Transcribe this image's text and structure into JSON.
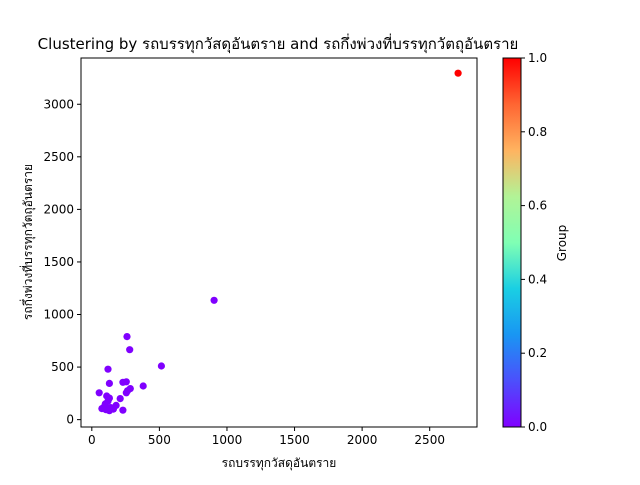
{
  "chart_data": {
    "type": "scatter",
    "title": "Clustering by รถบรรทุกวัสดุอันตราย and รถกึ่งพ่วงที่บรรทุกวัตถุอันตราย",
    "xlabel": "รถบรรทุกวัสดุอันตราย",
    "ylabel": "รถกึ่งพ่วงที่บรรทุกวัตถุอันตราย",
    "colorbar_label": "Group",
    "xlim": [
      -80,
      2850
    ],
    "ylim": [
      -70,
      3440
    ],
    "x_ticks": [
      0,
      500,
      1000,
      1500,
      2000,
      2500
    ],
    "y_ticks": [
      0,
      500,
      1000,
      1500,
      2000,
      2500,
      3000
    ],
    "colorbar_ticks": [
      0.0,
      0.2,
      0.4,
      0.6,
      0.8,
      1.0
    ],
    "colorbar_tick_labels": [
      "0.0",
      "0.2",
      "0.4",
      "0.6",
      "0.8",
      "1.0"
    ],
    "colormap": "rainbow",
    "grid": false,
    "points": [
      {
        "x": 2710,
        "y": 3295,
        "group": 1
      },
      {
        "x": 905,
        "y": 1135,
        "group": 0
      },
      {
        "x": 260,
        "y": 790,
        "group": 0
      },
      {
        "x": 280,
        "y": 665,
        "group": 0
      },
      {
        "x": 515,
        "y": 510,
        "group": 0
      },
      {
        "x": 120,
        "y": 480,
        "group": 0
      },
      {
        "x": 380,
        "y": 320,
        "group": 0
      },
      {
        "x": 230,
        "y": 355,
        "group": 0
      },
      {
        "x": 255,
        "y": 360,
        "group": 0
      },
      {
        "x": 130,
        "y": 345,
        "group": 0
      },
      {
        "x": 285,
        "y": 295,
        "group": 0
      },
      {
        "x": 265,
        "y": 275,
        "group": 0
      },
      {
        "x": 255,
        "y": 255,
        "group": 0
      },
      {
        "x": 55,
        "y": 255,
        "group": 0
      },
      {
        "x": 110,
        "y": 225,
        "group": 0
      },
      {
        "x": 130,
        "y": 205,
        "group": 0
      },
      {
        "x": 210,
        "y": 200,
        "group": 0
      },
      {
        "x": 120,
        "y": 175,
        "group": 0
      },
      {
        "x": 100,
        "y": 150,
        "group": 0
      },
      {
        "x": 180,
        "y": 135,
        "group": 0
      },
      {
        "x": 140,
        "y": 115,
        "group": 0
      },
      {
        "x": 90,
        "y": 120,
        "group": 0
      },
      {
        "x": 75,
        "y": 105,
        "group": 0
      },
      {
        "x": 160,
        "y": 100,
        "group": 0
      },
      {
        "x": 105,
        "y": 95,
        "group": 0
      },
      {
        "x": 230,
        "y": 90,
        "group": 0
      },
      {
        "x": 130,
        "y": 85,
        "group": 0
      }
    ]
  },
  "colors": {
    "group_0": "#8000ff",
    "group_1": "#ff0000"
  }
}
